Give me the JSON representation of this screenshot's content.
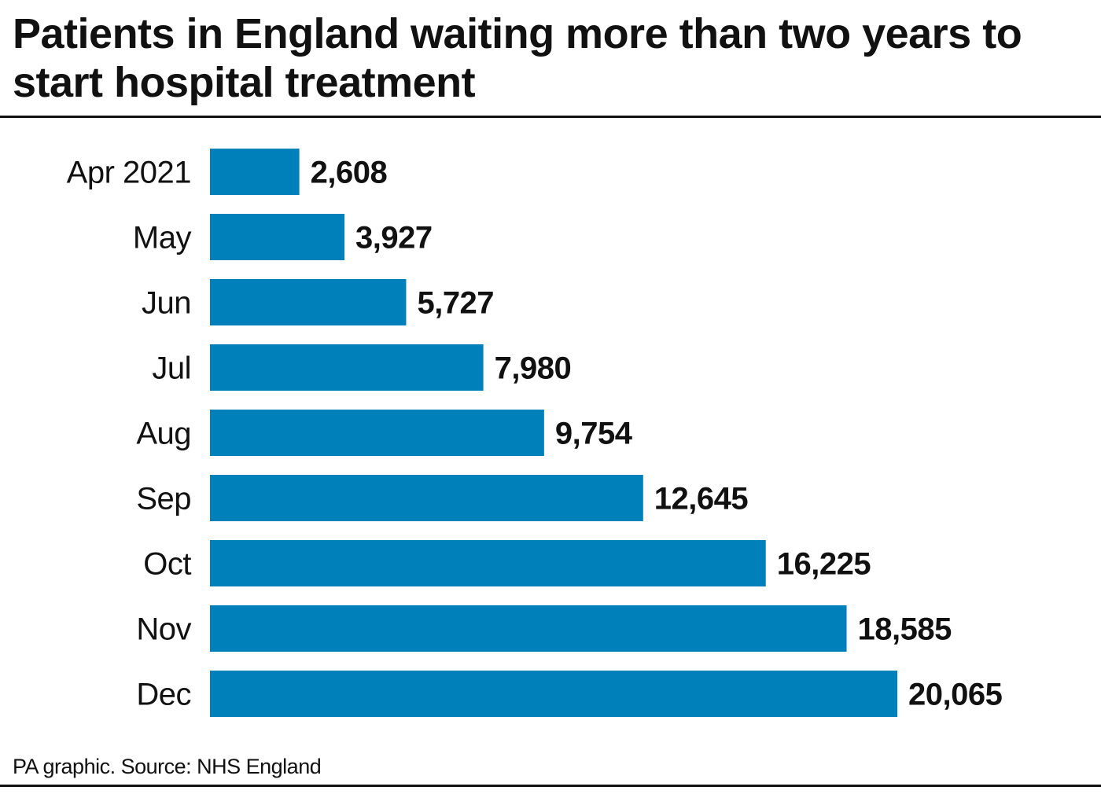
{
  "title": "Patients in England waiting more than two years to start hospital treatment",
  "source": "PA graphic. Source: NHS England",
  "chart_data": {
    "type": "bar",
    "orientation": "horizontal",
    "categories": [
      "Apr 2021",
      "May",
      "Jun",
      "Jul",
      "Aug",
      "Sep",
      "Oct",
      "Nov",
      "Dec"
    ],
    "values": [
      2608,
      3927,
      5727,
      7980,
      9754,
      12645,
      16225,
      18585,
      20065
    ],
    "value_labels": [
      "2,608",
      "3,927",
      "5,727",
      "7,980",
      "9,754",
      "12,645",
      "16,225",
      "18,585",
      "20,065"
    ],
    "title": "Patients in England waiting more than two years to start hospital treatment",
    "xlabel": "",
    "ylabel": "",
    "xlim": [
      0,
      20065
    ],
    "grid": false,
    "bar_color": "#0080bb"
  }
}
